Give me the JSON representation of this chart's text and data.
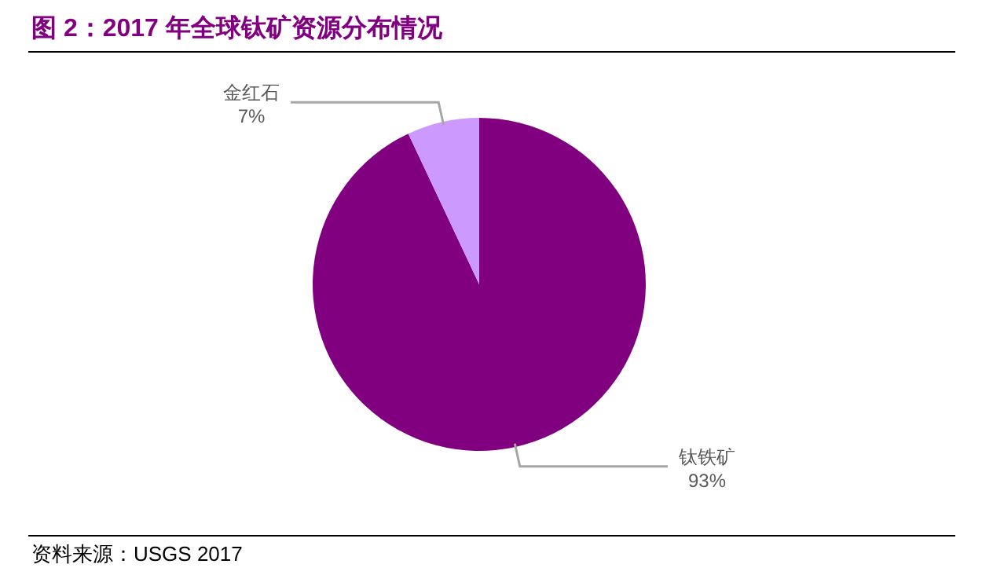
{
  "chart_data": {
    "type": "pie",
    "title": "图 2：2017 年全球钛矿资源分布情况",
    "categories": [
      "钛铁矿",
      "金红石"
    ],
    "values": [
      93,
      7
    ],
    "colors": [
      "#800080",
      "#cc99ff"
    ],
    "value_labels": [
      "93%",
      "7%"
    ],
    "annotations": [
      "资料来源：USGS 2017"
    ]
  }
}
